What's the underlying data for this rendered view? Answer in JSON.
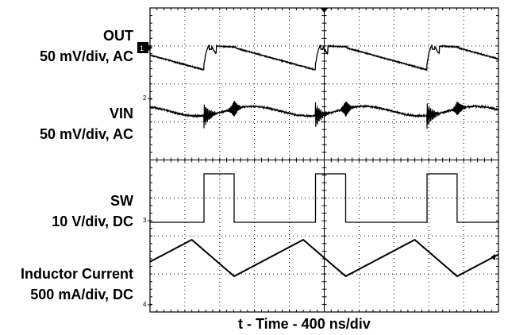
{
  "chart_data": {
    "type": "line",
    "channels": [
      {
        "name": "OUT",
        "scale": "50 mV/div, AC",
        "marker": "1"
      },
      {
        "name": "VIN",
        "scale": "50 mV/div, AC",
        "marker": "2"
      },
      {
        "name": "SW",
        "scale": "10 V/div, DC",
        "marker": "3"
      },
      {
        "name": "Inductor Current",
        "scale": "500 mA/div, DC",
        "marker": "4"
      }
    ],
    "xlabel": "t - Time - 400 ns/div",
    "grid": true,
    "divisions": {
      "x": 10,
      "y": 8
    },
    "switching_period_div": 3.2,
    "sw_high_fraction": 0.27,
    "colors": {
      "trace": "#000000",
      "grid": "#000000",
      "background": "#ffffff"
    }
  }
}
